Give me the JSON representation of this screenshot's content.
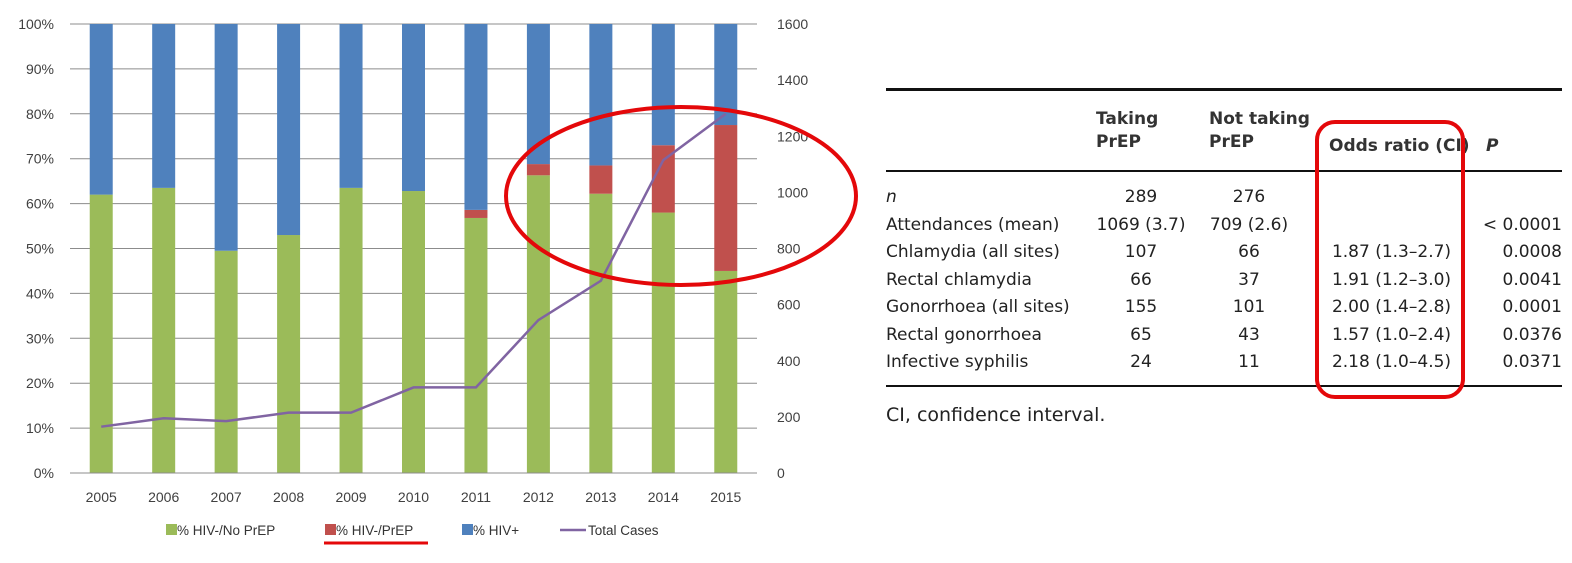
{
  "chart_data": {
    "type": "bar",
    "stacked": true,
    "categories": [
      "2005",
      "2006",
      "2007",
      "2008",
      "2009",
      "2010",
      "2011",
      "2012",
      "2013",
      "2014",
      "2015"
    ],
    "series": [
      {
        "name": "% HIV-/No PrEP",
        "color": "#9bbb59",
        "values": [
          62,
          63.5,
          49.5,
          53,
          63.5,
          62.8,
          56.8,
          66.3,
          62.2,
          58,
          45
        ]
      },
      {
        "name": "% HIV-/PrEP",
        "color": "#c0504d",
        "values": [
          0,
          0,
          0,
          0,
          0,
          0,
          1.8,
          2.5,
          6.3,
          15,
          32.5
        ]
      },
      {
        "name": "% HIV+",
        "color": "#4f81bd",
        "values": [
          38,
          36.5,
          50.5,
          47,
          36.5,
          37.2,
          41.4,
          31.2,
          31.5,
          27,
          22.5
        ]
      }
    ],
    "line_series": {
      "name": "Total Cases",
      "color": "#8064a2",
      "values": [
        165,
        195,
        185,
        215,
        215,
        305,
        305,
        545,
        685,
        1115,
        1280
      ]
    },
    "y_left": {
      "min": 0,
      "max": 100,
      "ticks": [
        "0%",
        "10%",
        "20%",
        "30%",
        "40%",
        "50%",
        "60%",
        "70%",
        "80%",
        "90%",
        "100%"
      ]
    },
    "y_right": {
      "min": 0,
      "max": 1600,
      "ticks": [
        "0",
        "200",
        "400",
        "600",
        "800",
        "1000",
        "1200",
        "1400",
        "1600"
      ]
    },
    "legend_position": "bottom",
    "grid": true,
    "highlights": {
      "ellipse": "2012-2015 region",
      "underline": "% HIV-/PrEP",
      "color": "#e4080a"
    }
  },
  "table": {
    "headers": {
      "taking": [
        "Taking",
        "PrEP"
      ],
      "not_taking": [
        "Not taking",
        "PrEP"
      ],
      "odds": "Odds ratio (CI)",
      "p": "P"
    },
    "rows": [
      {
        "label": "n",
        "taking": "289",
        "not_taking": "276",
        "odds": "",
        "p": ""
      },
      {
        "label": "Attendances (mean)",
        "taking": "1069 (3.7)",
        "not_taking": "709 (2.6)",
        "odds": "",
        "p": "< 0.0001"
      },
      {
        "label": "Chlamydia (all sites)",
        "taking": "107",
        "not_taking": "66",
        "odds": "1.87 (1.3–2.7)",
        "p": "0.0008"
      },
      {
        "label": "Rectal chlamydia",
        "taking": "66",
        "not_taking": "37",
        "odds": "1.91 (1.2–3.0)",
        "p": "0.0041"
      },
      {
        "label": "Gonorrhoea (all sites)",
        "taking": "155",
        "not_taking": "101",
        "odds": "2.00 (1.4–2.8)",
        "p": "0.0001"
      },
      {
        "label": "Rectal gonorrhoea",
        "taking": "65",
        "not_taking": "43",
        "odds": "1.57 (1.0–2.4)",
        "p": "0.0376"
      },
      {
        "label": "Infective syphilis",
        "taking": "24",
        "not_taking": "11",
        "odds": "2.18 (1.0–4.5)",
        "p": "0.0371"
      }
    ],
    "note": "CI, confidence interval.",
    "highlight_color": "#e4080a"
  }
}
